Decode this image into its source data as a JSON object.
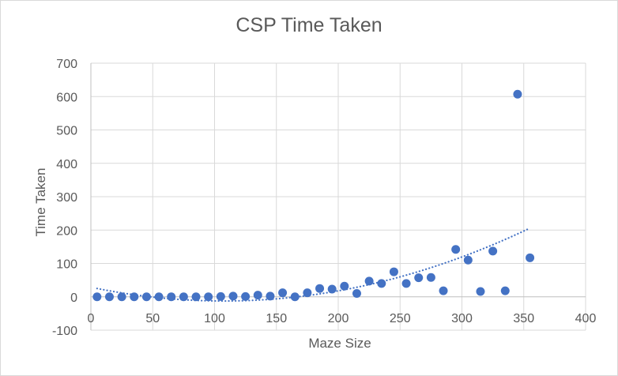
{
  "chart_data": {
    "type": "scatter",
    "title": "CSP Time Taken",
    "xlabel": "Maze Size",
    "ylabel": "Time Taken",
    "xlim": [
      0,
      400
    ],
    "ylim": [
      -100,
      700
    ],
    "x_ticks": [
      0,
      50,
      100,
      150,
      200,
      250,
      300,
      350,
      400
    ],
    "y_ticks": [
      -100,
      0,
      100,
      200,
      300,
      400,
      500,
      600,
      700
    ],
    "x_tick_labels": [
      "0",
      "50",
      "100",
      "150",
      "200",
      "250",
      "300",
      "350",
      "400"
    ],
    "y_tick_labels": [
      "-100",
      "0",
      "100",
      "200",
      "300",
      "400",
      "500",
      "600",
      "700"
    ],
    "grid": true,
    "marker_color": "#4472c4",
    "trendline": {
      "type": "polynomial",
      "style": "dotted",
      "color": "#4472c4"
    },
    "series": [
      {
        "x": [
          5,
          15,
          25,
          35,
          45,
          55,
          65,
          75,
          85,
          95,
          105,
          115,
          125,
          135,
          145,
          155,
          165,
          175,
          185,
          195,
          205,
          215,
          225,
          235,
          245,
          255,
          265,
          275,
          285,
          295,
          305,
          315,
          325,
          335,
          345,
          355
        ],
        "y": [
          0,
          0,
          0,
          0,
          0,
          0,
          0,
          0,
          0,
          0,
          1,
          2,
          1,
          5,
          2,
          12,
          0,
          12,
          25,
          23,
          32,
          10,
          47,
          40,
          75,
          40,
          57,
          58,
          18,
          142,
          110,
          16,
          137,
          18,
          607,
          117
        ]
      }
    ]
  }
}
